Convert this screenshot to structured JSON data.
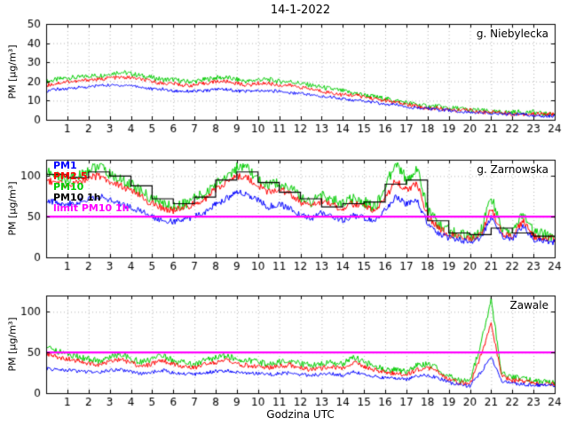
{
  "chart_data": {
    "type": "line",
    "title": "14-1-2022",
    "xlabel": "Godzina UTC",
    "ylabel": "PM [µg/m³]",
    "x_start": 0,
    "x_step": 0.5,
    "xlim": [
      0,
      24
    ],
    "xticks": [
      1,
      2,
      3,
      4,
      5,
      6,
      7,
      8,
      9,
      10,
      11,
      12,
      13,
      14,
      15,
      16,
      17,
      18,
      19,
      20,
      21,
      22,
      23,
      24
    ],
    "limit": {
      "value": 50,
      "color": "#ff00ff"
    },
    "grid": true,
    "legend": [
      {
        "label": "PM1",
        "color": "#0000ff"
      },
      {
        "label": "PM2.5",
        "color": "#ff0000"
      },
      {
        "label": "PM10",
        "color": "#00cc00"
      },
      {
        "label": "PM10 1h",
        "color": "#000000"
      },
      {
        "label": "limit PM10 1h",
        "color": "#ff00ff"
      }
    ],
    "panels": [
      {
        "title": "g. Niebylecka",
        "ylim": [
          0,
          50
        ],
        "yticks": [
          0,
          10,
          20,
          30,
          40,
          50
        ],
        "series": [
          {
            "name": "PM10",
            "color": "#00cc00",
            "jitter": 1.3,
            "values": [
              20,
              21,
              22,
              22,
              23,
              23,
              24,
              25,
              24,
              23,
              22,
              21,
              21,
              20,
              20,
              21,
              22,
              22,
              21,
              20,
              21,
              21,
              20,
              20,
              19,
              18,
              17,
              16,
              15,
              14,
              13,
              12,
              11,
              10,
              9,
              8,
              7,
              7,
              6,
              6,
              5,
              5,
              4,
              4,
              4,
              4,
              4,
              3,
              3
            ]
          },
          {
            "name": "PM2.5",
            "color": "#ff0000",
            "jitter": 1.0,
            "values": [
              18,
              19,
              20,
              20,
              21,
              21,
              22,
              22,
              22,
              21,
              20,
              19,
              19,
              18,
              18,
              19,
              20,
              20,
              19,
              18,
              19,
              19,
              18,
              18,
              17,
              16,
              15,
              14,
              13,
              13,
              12,
              11,
              10,
              9,
              8,
              7,
              6,
              6,
              5,
              5,
              5,
              4,
              4,
              4,
              3,
              3,
              3,
              3,
              3
            ]
          },
          {
            "name": "PM1",
            "color": "#0000ff",
            "jitter": 0.8,
            "values": [
              15,
              16,
              16,
              17,
              17,
              18,
              18,
              18,
              18,
              17,
              16,
              16,
              15,
              15,
              15,
              15,
              16,
              16,
              15,
              15,
              15,
              15,
              15,
              14,
              14,
              13,
              12,
              12,
              11,
              10,
              10,
              9,
              8,
              8,
              7,
              6,
              6,
              5,
              5,
              4,
              4,
              4,
              3,
              3,
              3,
              3,
              2,
              2,
              2
            ]
          }
        ],
        "hourly": null
      },
      {
        "title": "g. Zarnowska",
        "ylim": [
          0,
          120
        ],
        "yticks": [
          0,
          50,
          100
        ],
        "series": [
          {
            "name": "PM10",
            "color": "#00cc00",
            "jitter": 7,
            "values": [
              105,
              100,
              96,
              100,
              108,
              112,
              102,
              95,
              90,
              80,
              72,
              66,
              62,
              66,
              72,
              78,
              90,
              100,
              110,
              108,
              96,
              88,
              92,
              86,
              74,
              68,
              76,
              70,
              66,
              72,
              68,
              62,
              85,
              118,
              95,
              110,
              60,
              40,
              32,
              28,
              26,
              30,
              75,
              35,
              30,
              55,
              30,
              28,
              26
            ]
          },
          {
            "name": "PM2.5",
            "color": "#ff0000",
            "jitter": 4.5,
            "values": [
              95,
              92,
              88,
              92,
              98,
              100,
              94,
              88,
              82,
              74,
              66,
              60,
              58,
              60,
              66,
              72,
              84,
              92,
              100,
              98,
              88,
              80,
              84,
              78,
              68,
              62,
              70,
              64,
              60,
              66,
              62,
              58,
              72,
              95,
              82,
              90,
              52,
              36,
              28,
              25,
              23,
              27,
              60,
              30,
              26,
              45,
              26,
              24,
              23
            ]
          },
          {
            "name": "PM1",
            "color": "#0000ff",
            "jitter": 4,
            "values": [
              70,
              68,
              65,
              68,
              72,
              75,
              70,
              66,
              62,
              56,
              50,
              46,
              44,
              46,
              50,
              56,
              66,
              72,
              80,
              78,
              70,
              62,
              66,
              60,
              52,
              48,
              55,
              50,
              46,
              52,
              48,
              45,
              58,
              75,
              65,
              70,
              42,
              30,
              24,
              21,
              20,
              23,
              48,
              26,
              22,
              38,
              22,
              20,
              19
            ]
          }
        ],
        "hourly": {
          "name": "PM10 1h",
          "color": "#000000",
          "values": [
            102,
            98,
            105,
            100,
            88,
            72,
            66,
            74,
            95,
            105,
            92,
            80,
            72,
            62,
            66,
            68,
            90,
            95,
            45,
            30,
            28,
            36,
            30,
            26
          ]
        }
      },
      {
        "title": "Zawale",
        "ylim": [
          0,
          120
        ],
        "yticks": [
          0,
          50,
          100
        ],
        "series": [
          {
            "name": "PM10",
            "color": "#00cc00",
            "jitter": 4,
            "values": [
              55,
              52,
              48,
              45,
              42,
              40,
              44,
              48,
              42,
              38,
              42,
              46,
              40,
              38,
              36,
              40,
              44,
              46,
              42,
              40,
              38,
              36,
              38,
              40,
              36,
              34,
              36,
              38,
              35,
              45,
              38,
              34,
              30,
              28,
              26,
              34,
              36,
              30,
              20,
              16,
              14,
              60,
              115,
              25,
              20,
              18,
              16,
              15,
              14
            ]
          },
          {
            "name": "PM2.5",
            "color": "#ff0000",
            "jitter": 3,
            "values": [
              48,
              45,
              42,
              40,
              37,
              35,
              38,
              42,
              37,
              33,
              36,
              40,
              35,
              33,
              31,
              35,
              38,
              40,
              36,
              34,
              33,
              31,
              33,
              35,
              31,
              29,
              31,
              33,
              30,
              38,
              33,
              29,
              26,
              24,
              22,
              29,
              31,
              26,
              17,
              13,
              11,
              45,
              85,
              20,
              16,
              15,
              13,
              12,
              11
            ]
          },
          {
            "name": "PM1",
            "color": "#0000ff",
            "jitter": 2.2,
            "values": [
              30,
              29,
              28,
              27,
              26,
              26,
              28,
              29,
              26,
              24,
              26,
              28,
              25,
              24,
              23,
              25,
              27,
              28,
              26,
              25,
              24,
              23,
              24,
              25,
              23,
              22,
              23,
              24,
              22,
              26,
              24,
              21,
              19,
              18,
              17,
              21,
              22,
              19,
              13,
              10,
              9,
              25,
              45,
              14,
              12,
              11,
              10,
              10,
              9
            ]
          }
        ],
        "hourly": null
      }
    ]
  }
}
